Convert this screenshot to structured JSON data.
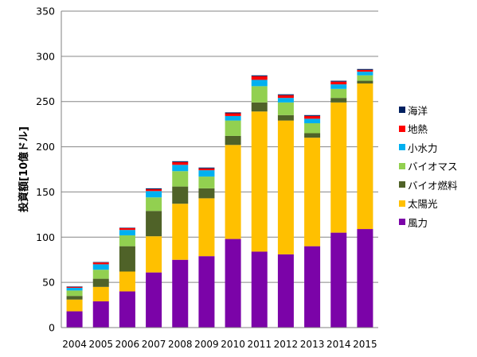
{
  "chart_data": {
    "type": "bar",
    "stacked": true,
    "title": "",
    "xlabel": "",
    "ylabel": "投資額[10億ドル]",
    "ylim": [
      0,
      350
    ],
    "yticks": [
      0,
      50,
      100,
      150,
      200,
      250,
      300,
      350
    ],
    "grid": true,
    "legend_position": "right",
    "categories": [
      "2004",
      "2005",
      "2006",
      "2007",
      "2008",
      "2009",
      "2010",
      "2011",
      "2012",
      "2013",
      "2014",
      "2015"
    ],
    "series": [
      {
        "name": "風力",
        "color": "#7b03a8",
        "values": [
          18,
          29,
          40,
          61,
          75,
          79,
          98,
          84,
          81,
          90,
          105,
          109
        ]
      },
      {
        "name": "太陽光",
        "color": "#ffc000",
        "values": [
          13,
          16,
          22,
          40,
          62,
          64,
          104,
          155,
          148,
          120,
          144,
          161
        ]
      },
      {
        "name": "バイオ燃料",
        "color": "#4f6228",
        "values": [
          4,
          9,
          28,
          28,
          19,
          11,
          10,
          10,
          6,
          5,
          5,
          3
        ]
      },
      {
        "name": "バイオマス",
        "color": "#92d050",
        "values": [
          6,
          10,
          12,
          15,
          17,
          13,
          17,
          18,
          14,
          11,
          10,
          6
        ]
      },
      {
        "name": "小水力",
        "color": "#00b0f0",
        "values": [
          3,
          6,
          6,
          7,
          7,
          7,
          5,
          7,
          5,
          5,
          5,
          4
        ]
      },
      {
        "name": "地熱",
        "color": "#ff0000",
        "values": [
          1,
          2,
          2,
          2,
          3,
          2,
          3,
          4,
          3,
          3,
          3,
          2
        ]
      },
      {
        "name": "海洋",
        "color": "#002060",
        "values": [
          0.5,
          0.5,
          0.5,
          1,
          1,
          1,
          1,
          1,
          1,
          1,
          1,
          1
        ]
      }
    ]
  }
}
